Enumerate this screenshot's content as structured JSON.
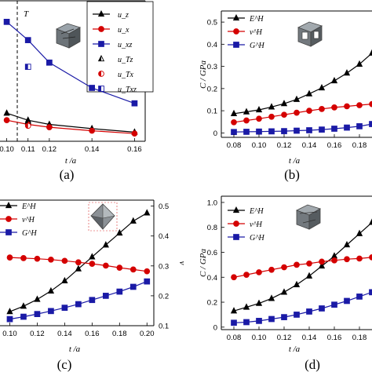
{
  "panels": [
    {
      "label": "(a)",
      "chart_data": {
        "type": "line",
        "xlabel": "t /a",
        "ylabel": "",
        "xticks": [
          "0.10",
          "0.11",
          "0.12",
          "0.14",
          "0.16"
        ],
        "xlim": [
          0.095,
          0.165
        ],
        "ylim": [
          0,
          1
        ],
        "annotation": "T",
        "vline_x": 0.11,
        "grid": false,
        "legend_position": "top-right",
        "series": [
          {
            "name": "u_z",
            "color": "#000000",
            "marker": "triangle",
            "x": [
              0.1,
              0.11,
              0.12,
              0.14,
              0.16
            ],
            "y": [
              0.2,
              0.15,
              0.12,
              0.09,
              0.065
            ]
          },
          {
            "name": "u_x",
            "color": "#d40000",
            "marker": "circle",
            "x": [
              0.1,
              0.11,
              0.12,
              0.14,
              0.16
            ],
            "y": [
              0.15,
              0.12,
              0.1,
              0.075,
              0.055
            ]
          },
          {
            "name": "u_xz",
            "color": "#1a1aa6",
            "marker": "square",
            "x": [
              0.1,
              0.11,
              0.12,
              0.14,
              0.16
            ],
            "y": [
              0.85,
              0.72,
              0.56,
              0.38,
              0.27
            ]
          },
          {
            "name": "u_Tz",
            "color": "#000000",
            "marker": "half-triangle",
            "x": [
              0.11
            ],
            "y": [
              0.14
            ]
          },
          {
            "name": "u_Tx",
            "color": "#d40000",
            "marker": "half-circle",
            "x": [
              0.11
            ],
            "y": [
              0.11
            ]
          },
          {
            "name": "u_Txz",
            "color": "#1a1aa6",
            "marker": "half-square",
            "x": [
              0.11
            ],
            "y": [
              0.53
            ]
          }
        ]
      }
    },
    {
      "label": "(b)",
      "chart_data": {
        "type": "line",
        "xlabel": "t /a",
        "ylabel": "C / GPa",
        "xticks": [
          "0.08",
          "0.10",
          "0.12",
          "0.14",
          "0.16",
          "0.18"
        ],
        "yticks": [
          "0",
          "0.1",
          "0.2",
          "0.3",
          "0.4",
          "0.5"
        ],
        "xlim": [
          0.07,
          0.19
        ],
        "ylim": [
          -0.02,
          0.55
        ],
        "grid": false,
        "legend_position": "top-left",
        "series": [
          {
            "name": "E^H",
            "color": "#000000",
            "marker": "triangle",
            "x": [
              0.08,
              0.09,
              0.1,
              0.11,
              0.12,
              0.13,
              0.14,
              0.15,
              0.16,
              0.17,
              0.18,
              0.19
            ],
            "y": [
              0.087,
              0.095,
              0.104,
              0.117,
              0.132,
              0.151,
              0.176,
              0.203,
              0.235,
              0.27,
              0.31,
              0.36
            ]
          },
          {
            "name": "v^H",
            "color": "#d40000",
            "marker": "circle",
            "x": [
              0.08,
              0.09,
              0.1,
              0.11,
              0.12,
              0.13,
              0.14,
              0.15,
              0.16,
              0.17,
              0.18,
              0.19
            ],
            "y": [
              0.048,
              0.056,
              0.064,
              0.073,
              0.082,
              0.091,
              0.1,
              0.108,
              0.115,
              0.12,
              0.125,
              0.13
            ]
          },
          {
            "name": "G^H",
            "color": "#1a1aa6",
            "marker": "square",
            "x": [
              0.08,
              0.09,
              0.1,
              0.11,
              0.12,
              0.13,
              0.14,
              0.15,
              0.16,
              0.17,
              0.18,
              0.19
            ],
            "y": [
              0.004,
              0.005,
              0.006,
              0.007,
              0.008,
              0.01,
              0.012,
              0.015,
              0.019,
              0.024,
              0.03,
              0.04
            ]
          }
        ]
      }
    },
    {
      "label": "(c)",
      "chart_data": {
        "type": "line",
        "xlabel": "t /a",
        "ylabel": "",
        "y2label": "ν",
        "xticks": [
          "0.10",
          "0.12",
          "0.14",
          "0.16",
          "0.18",
          "0.20"
        ],
        "y2ticks": [
          "0.1",
          "0.2",
          "0.3",
          "0.4",
          "0.5"
        ],
        "xlim": [
          0.09,
          0.205
        ],
        "y2lim": [
          0.1,
          0.52
        ],
        "grid": false,
        "legend_position": "top-left",
        "series": [
          {
            "name": "E^H",
            "color": "#000000",
            "marker": "triangle",
            "x": [
              0.1,
              0.11,
              0.12,
              0.13,
              0.14,
              0.15,
              0.16,
              0.17,
              0.18,
              0.19,
              0.2
            ],
            "y": [
              0.147,
              0.165,
              0.188,
              0.216,
              0.25,
              0.29,
              0.33,
              0.37,
              0.41,
              0.45,
              0.477
            ]
          },
          {
            "name": "v^H",
            "color": "#d40000",
            "marker": "circle",
            "x": [
              0.1,
              0.11,
              0.12,
              0.13,
              0.14,
              0.15,
              0.16,
              0.17,
              0.18,
              0.19,
              0.2
            ],
            "y": [
              0.328,
              0.326,
              0.324,
              0.321,
              0.317,
              0.312,
              0.307,
              0.301,
              0.294,
              0.288,
              0.282
            ]
          },
          {
            "name": "G^H",
            "color": "#1a1aa6",
            "marker": "square",
            "x": [
              0.1,
              0.11,
              0.12,
              0.13,
              0.14,
              0.15,
              0.16,
              0.17,
              0.18,
              0.19,
              0.2
            ],
            "y": [
              0.122,
              0.13,
              0.139,
              0.149,
              0.16,
              0.172,
              0.186,
              0.2,
              0.214,
              0.23,
              0.248
            ]
          }
        ]
      }
    },
    {
      "label": "(d)",
      "chart_data": {
        "type": "line",
        "xlabel": "t /a",
        "ylabel": "C / GPa",
        "xticks": [
          "0.08",
          "0.10",
          "0.12",
          "0.14",
          "0.16",
          "0.18"
        ],
        "yticks": [
          "0",
          "0.2",
          "0.4",
          "0.6",
          "0.8",
          "1.0"
        ],
        "xlim": [
          0.07,
          0.19
        ],
        "ylim": [
          -0.02,
          1.05
        ],
        "grid": false,
        "legend_position": "top-left",
        "series": [
          {
            "name": "E^H",
            "color": "#000000",
            "marker": "triangle",
            "x": [
              0.08,
              0.09,
              0.1,
              0.11,
              0.12,
              0.13,
              0.14,
              0.15,
              0.16,
              0.17,
              0.18,
              0.19
            ],
            "y": [
              0.13,
              0.16,
              0.19,
              0.23,
              0.28,
              0.34,
              0.41,
              0.49,
              0.57,
              0.66,
              0.75,
              0.84
            ]
          },
          {
            "name": "v^H",
            "color": "#d40000",
            "marker": "circle",
            "x": [
              0.08,
              0.09,
              0.1,
              0.11,
              0.12,
              0.13,
              0.14,
              0.15,
              0.16,
              0.17,
              0.18,
              0.19
            ],
            "y": [
              0.4,
              0.42,
              0.44,
              0.46,
              0.48,
              0.5,
              0.51,
              0.525,
              0.535,
              0.545,
              0.55,
              0.56
            ]
          },
          {
            "name": "G^H",
            "color": "#1a1aa6",
            "marker": "square",
            "x": [
              0.08,
              0.09,
              0.1,
              0.11,
              0.12,
              0.13,
              0.14,
              0.15,
              0.16,
              0.17,
              0.18,
              0.19
            ],
            "y": [
              0.035,
              0.04,
              0.05,
              0.065,
              0.08,
              0.1,
              0.125,
              0.15,
              0.18,
              0.21,
              0.245,
              0.28
            ]
          }
        ]
      }
    }
  ]
}
